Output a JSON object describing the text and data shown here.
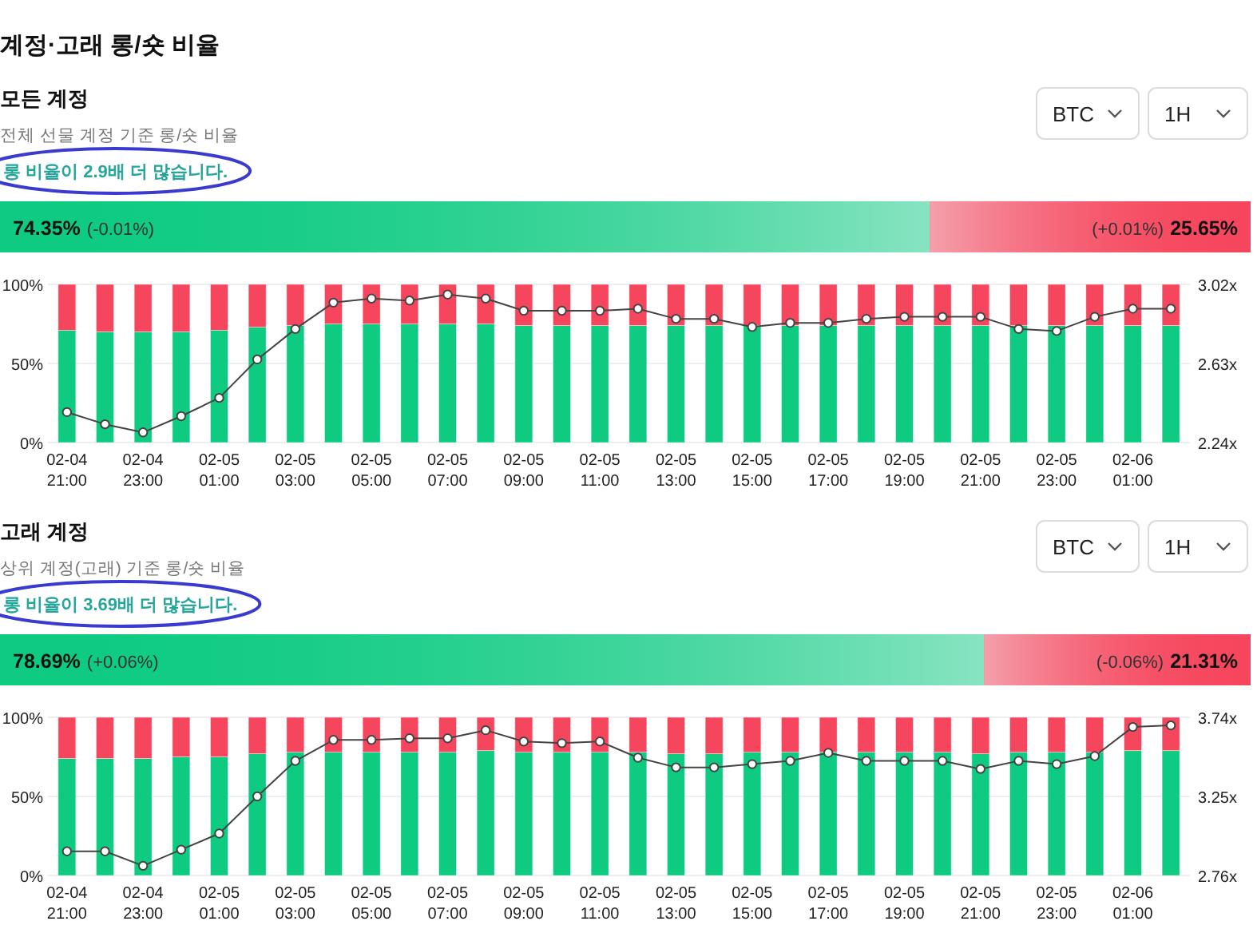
{
  "chart_data": [
    {
      "type": "bar",
      "orientation": "horizontal",
      "stacked": true,
      "title": "모든 계정",
      "subtitle": "전체 선물 계정 기준 롱/숏 비율",
      "categories": [
        null
      ],
      "series": [
        {
          "color": "#0ecb81",
          "values": [
            74.35
          ],
          "value_labels": [
            "74.35%"
          ]
        },
        {
          "color": "#f6465d",
          "values": [
            25.65
          ],
          "value_labels": [
            "25.65%"
          ]
        }
      ],
      "annotations": [
        "계정·고래 롱/숏 비율",
        "BTC",
        "1H",
        "롱 비율이 2.9배 더 많습니다.",
        "(-0.01%)",
        "(+0.01%)"
      ]
    },
    {
      "type": "bar",
      "stacked": true,
      "grid": "y",
      "marker": "circle",
      "categories": [
        "02-04 21:00",
        null,
        "02-04 23:00",
        null,
        "02-05 01:00",
        null,
        "02-05 03:00",
        null,
        "02-05 05:00",
        null,
        "02-05 07:00",
        null,
        "02-05 09:00",
        null,
        "02-05 11:00",
        null,
        "02-05 13:00",
        null,
        "02-05 15:00",
        null,
        "02-05 17:00",
        null,
        "02-05 19:00",
        null,
        "02-05 21:00",
        null,
        "02-05 23:00",
        null,
        "02-06 01:00",
        null
      ],
      "series": [
        {
          "color": "#0ecb81",
          "values": [
            71,
            70,
            70,
            70,
            71,
            73,
            74,
            75,
            75,
            75,
            75,
            75,
            74,
            74,
            74,
            74,
            74,
            74,
            74,
            74,
            74,
            74,
            74,
            74,
            74,
            74,
            74,
            74,
            74,
            74
          ]
        },
        {
          "color": "#f6465d",
          "values": [
            29,
            30,
            30,
            30,
            29,
            27,
            26,
            25,
            25,
            25,
            25,
            25,
            26,
            26,
            26,
            26,
            26,
            26,
            26,
            26,
            26,
            26,
            26,
            26,
            26,
            26,
            26,
            26,
            26,
            26
          ]
        },
        {
          "type": "line",
          "axis": "y2",
          "color": "#444444",
          "values": [
            2.39,
            2.33,
            2.29,
            2.37,
            2.46,
            2.65,
            2.8,
            2.93,
            2.95,
            2.94,
            2.97,
            2.95,
            2.89,
            2.89,
            2.89,
            2.9,
            2.85,
            2.85,
            2.81,
            2.83,
            2.83,
            2.85,
            2.86,
            2.86,
            2.86,
            2.8,
            2.79,
            2.86,
            2.9,
            2.9
          ]
        }
      ],
      "ylim": [
        0,
        100
      ],
      "yticks": [
        {
          "value": 0,
          "label": "0%"
        },
        {
          "value": 50,
          "label": "50%"
        },
        {
          "value": 100,
          "label": "100%"
        }
      ],
      "y2lim": [
        2.24,
        3.02
      ],
      "y2ticks": [
        {
          "value": 2.24,
          "label": "2.24x"
        },
        {
          "value": 2.63,
          "label": "2.63x"
        },
        {
          "value": 3.02,
          "label": "3.02x"
        }
      ]
    },
    {
      "type": "bar",
      "orientation": "horizontal",
      "stacked": true,
      "title": "고래 계정",
      "subtitle": "상위 계정(고래) 기준 롱/숏 비율",
      "categories": [
        null
      ],
      "series": [
        {
          "color": "#0ecb81",
          "values": [
            78.69
          ],
          "value_labels": [
            "78.69%"
          ]
        },
        {
          "color": "#f6465d",
          "values": [
            21.31
          ],
          "value_labels": [
            "21.31%"
          ]
        }
      ],
      "annotations": [
        "BTC",
        "1H",
        "롱 비율이 3.69배 더 많습니다.",
        "(+0.06%)",
        "(-0.06%)"
      ]
    },
    {
      "type": "bar",
      "stacked": true,
      "grid": "y",
      "marker": "circle",
      "categories": [
        "02-04 21:00",
        null,
        "02-04 23:00",
        null,
        "02-05 01:00",
        null,
        "02-05 03:00",
        null,
        "02-05 05:00",
        null,
        "02-05 07:00",
        null,
        "02-05 09:00",
        null,
        "02-05 11:00",
        null,
        "02-05 13:00",
        null,
        "02-05 15:00",
        null,
        "02-05 17:00",
        null,
        "02-05 19:00",
        null,
        "02-05 21:00",
        null,
        "02-05 23:00",
        null,
        "02-06 01:00",
        null
      ],
      "series": [
        {
          "color": "#0ecb81",
          "values": [
            74,
            74,
            74,
            75,
            75,
            77,
            78,
            78,
            78,
            78,
            78,
            79,
            78,
            78,
            78,
            78,
            77,
            77,
            78,
            78,
            78,
            78,
            78,
            78,
            77,
            78,
            78,
            78,
            79,
            79
          ]
        },
        {
          "color": "#f6465d",
          "values": [
            26,
            26,
            26,
            25,
            25,
            23,
            22,
            22,
            22,
            22,
            22,
            21,
            22,
            22,
            22,
            22,
            23,
            23,
            22,
            22,
            22,
            22,
            22,
            22,
            23,
            22,
            22,
            22,
            21,
            21
          ]
        },
        {
          "type": "line",
          "axis": "y2",
          "color": "#444444",
          "values": [
            2.91,
            2.91,
            2.82,
            2.92,
            3.02,
            3.25,
            3.47,
            3.6,
            3.6,
            3.61,
            3.61,
            3.66,
            3.59,
            3.58,
            3.59,
            3.49,
            3.43,
            3.43,
            3.45,
            3.47,
            3.52,
            3.47,
            3.47,
            3.47,
            3.42,
            3.47,
            3.45,
            3.5,
            3.68,
            3.69
          ]
        }
      ],
      "ylim": [
        0,
        100
      ],
      "yticks": [
        {
          "value": 0,
          "label": "0%"
        },
        {
          "value": 50,
          "label": "50%"
        },
        {
          "value": 100,
          "label": "100%"
        }
      ],
      "y2lim": [
        2.76,
        3.74
      ],
      "y2ticks": [
        {
          "value": 2.76,
          "label": "2.76x"
        },
        {
          "value": 3.25,
          "label": "3.25x"
        },
        {
          "value": 3.74,
          "label": "3.74x"
        }
      ]
    }
  ]
}
